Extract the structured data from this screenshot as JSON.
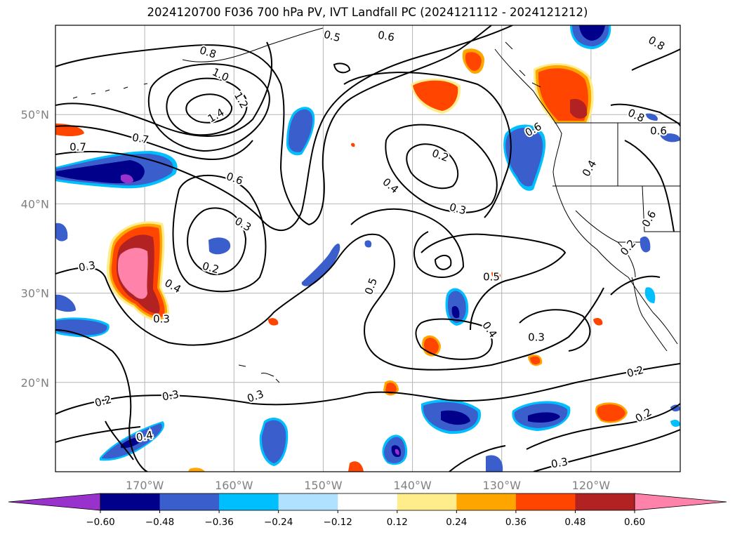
{
  "title": "2024120700 F036 700 hPa PV, IVT Landfall PC (2024121112 - 2024121212)",
  "map": {
    "lon_range": [
      -180,
      -110
    ],
    "lat_range": [
      10,
      60
    ],
    "lon_ticks": [
      {
        "value": -170,
        "label": "170°W"
      },
      {
        "value": -160,
        "label": "160°W"
      },
      {
        "value": -150,
        "label": "150°W"
      },
      {
        "value": -140,
        "label": "140°W"
      },
      {
        "value": -130,
        "label": "130°W"
      },
      {
        "value": -120,
        "label": "120°W"
      }
    ],
    "lat_ticks": [
      {
        "value": 20,
        "label": "20°N"
      },
      {
        "value": 30,
        "label": "30°N"
      },
      {
        "value": 40,
        "label": "40°N"
      },
      {
        "value": 50,
        "label": "50°N"
      }
    ],
    "grid": true,
    "contour_variable": "700 hPa PV",
    "contour_labels": [
      "0.8",
      "1.0",
      "1.2",
      "1.4",
      "0.5",
      "0.6",
      "0.8",
      "0.7",
      "0.7",
      "0.6",
      "0.2",
      "0.4",
      "0.3",
      "0.6",
      "0.8",
      "0.6",
      "0.4",
      "0.6",
      "0.3",
      "0.2",
      "0.3",
      "0.4",
      "0.5",
      "0.4",
      "0.3",
      "0.5",
      "0.3",
      "0.2",
      "0.3",
      "0.3",
      "0.2",
      "0.4",
      "0.2",
      "0.2",
      "0.3"
    ],
    "shaded_variable": "IVT Landfall PC"
  },
  "colorbar": {
    "levels": [
      "−0.60",
      "−0.48",
      "−0.36",
      "−0.24",
      "−0.12",
      "0.12",
      "0.24",
      "0.36",
      "0.48",
      "0.60"
    ],
    "colors": [
      "#9932cc",
      "#00008b",
      "#3a5fcd",
      "#00bfff",
      "#b0e2ff",
      "#ffffff",
      "#ffec8b",
      "#ffa500",
      "#ff4500",
      "#b22222",
      "#ff82ab"
    ],
    "extend": "both"
  },
  "colors": {
    "neg_strong": "#00008b",
    "neg_mid": "#3a5fcd",
    "neg_light": "#00bfff",
    "neg_pale": "#b0e2ff",
    "pos_pale": "#ffec8b",
    "pos_light": "#ffa500",
    "pos_mid": "#ff4500",
    "pos_strong": "#b22222",
    "pos_max": "#ff82ab",
    "neg_max": "#9932cc"
  }
}
